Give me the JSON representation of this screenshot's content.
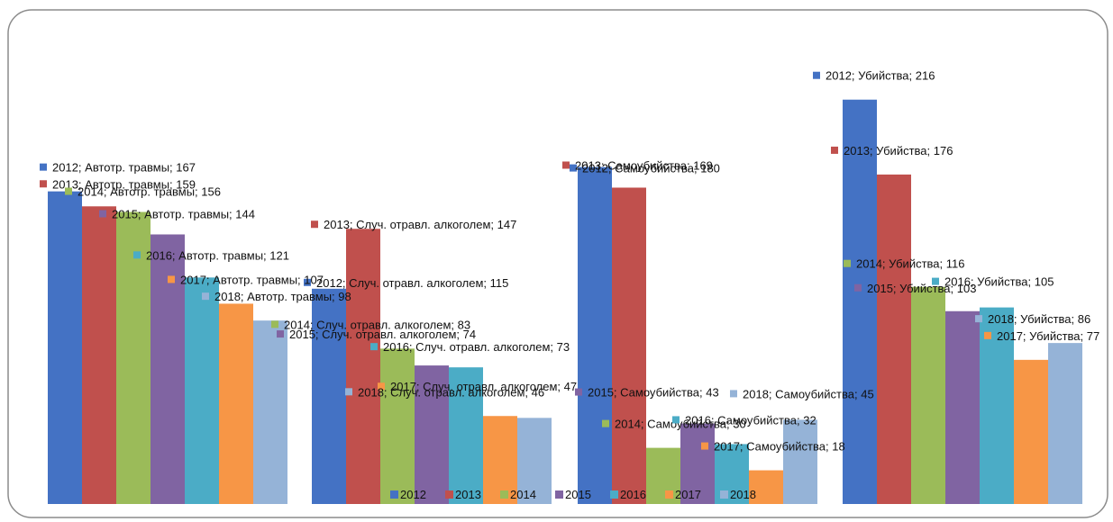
{
  "chart_data": {
    "type": "bar",
    "title": "",
    "xlabel": "",
    "ylabel": "",
    "ylim": [
      0,
      240
    ],
    "grid": false,
    "legend_placement": "bottom",
    "categories": [
      "Автотр. травмы",
      "Случ. отравл. алкоголем",
      "Самоубийства",
      "Убийства"
    ],
    "series": [
      {
        "name": "2012",
        "color": "#4472C4",
        "values": [
          167,
          115,
          180,
          216
        ]
      },
      {
        "name": "2013",
        "color": "#C0504D",
        "values": [
          159,
          147,
          169,
          176
        ]
      },
      {
        "name": "2014",
        "color": "#9BBB59",
        "values": [
          156,
          83,
          30,
          116
        ]
      },
      {
        "name": "2015",
        "color": "#8064A2",
        "values": [
          144,
          74,
          43,
          103
        ]
      },
      {
        "name": "2016",
        "color": "#4BACC6",
        "values": [
          121,
          73,
          32,
          105
        ]
      },
      {
        "name": "2017",
        "color": "#F79646",
        "values": [
          107,
          47,
          18,
          77
        ]
      },
      {
        "name": "2018",
        "color": "#95B3D7",
        "values": [
          98,
          46,
          45,
          86
        ]
      }
    ],
    "data_labels": [
      [
        "2012; Автотр. травмы; 167",
        "2012; Случ. отравл. алкоголем; 115",
        "2012; Самоубийства; 180",
        "2012; Убийства; 216"
      ],
      [
        "2013; Автотр. травмы; 159",
        "2013; Случ. отравл. алкоголем; 147",
        "2013; Самоубийства; 169",
        "2013; Убийства; 176"
      ],
      [
        "2014; Автотр. травмы; 156",
        "2014; Случ. отравл. алкоголем; 83",
        "2014; Самоубийства; 30",
        "2014; Убийства; 116"
      ],
      [
        "2015; Автотр. травмы; 144",
        "2015; Случ. отравл. алкоголем; 74",
        "2015; Самоубийства; 43",
        "2015; Убийства; 103"
      ],
      [
        "2016; Автотр. травмы; 121",
        "2016; Случ. отравл. алкоголем; 73",
        "2016; Самоубийства; 32",
        "2016; Убийства; 105"
      ],
      [
        "2017; Автотр. травмы; 107",
        "2017; Случ. отравл. алкоголем; 47",
        "2017; Самоубийства; 18",
        "2017; Убийства; 77"
      ],
      [
        "2018; Автотр. травмы; 98",
        "2018; Случ. отравл. алкоголем; 46",
        "2018; Самоубийства; 45",
        "2018; Убийства; 86"
      ]
    ]
  }
}
